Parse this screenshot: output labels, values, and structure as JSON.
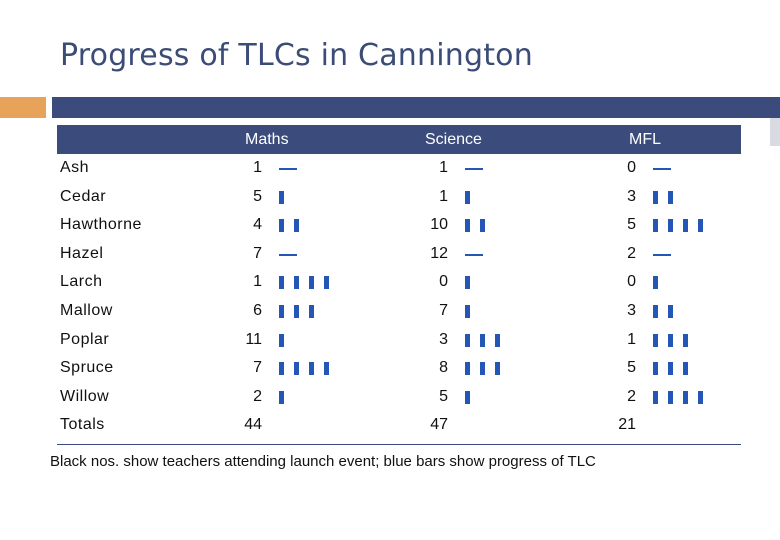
{
  "title": "Progress of TLCs in Cannington",
  "columns": [
    "Maths",
    "Science",
    "MFL"
  ],
  "rows": [
    {
      "name": "Ash",
      "maths": {
        "count": "1",
        "progress": 0
      },
      "science": {
        "count": "1",
        "progress": 0
      },
      "mfl": {
        "count": "0",
        "progress": 0
      }
    },
    {
      "name": "Cedar",
      "maths": {
        "count": "5",
        "progress": 1
      },
      "science": {
        "count": "1",
        "progress": 1
      },
      "mfl": {
        "count": "3",
        "progress": 2
      }
    },
    {
      "name": "Hawthorne",
      "maths": {
        "count": "4",
        "progress": 2
      },
      "science": {
        "count": "10",
        "progress": 2
      },
      "mfl": {
        "count": "5",
        "progress": 4
      }
    },
    {
      "name": "Hazel",
      "maths": {
        "count": "7",
        "progress": 0
      },
      "science": {
        "count": "12",
        "progress": 0
      },
      "mfl": {
        "count": "2",
        "progress": 0
      }
    },
    {
      "name": "Larch",
      "maths": {
        "count": "1",
        "progress": 4
      },
      "science": {
        "count": "0",
        "progress": 1
      },
      "mfl": {
        "count": "0",
        "progress": 1
      }
    },
    {
      "name": "Mallow",
      "maths": {
        "count": "6",
        "progress": 3
      },
      "science": {
        "count": "7",
        "progress": 1
      },
      "mfl": {
        "count": "3",
        "progress": 2
      }
    },
    {
      "name": "Poplar",
      "maths": {
        "count": "11",
        "progress": 1
      },
      "science": {
        "count": "3",
        "progress": 3
      },
      "mfl": {
        "count": "1",
        "progress": 3
      }
    },
    {
      "name": "Spruce",
      "maths": {
        "count": "7",
        "progress": 4
      },
      "science": {
        "count": "8",
        "progress": 3
      },
      "mfl": {
        "count": "5",
        "progress": 3
      }
    },
    {
      "name": "Willow",
      "maths": {
        "count": "2",
        "progress": 1
      },
      "science": {
        "count": "5",
        "progress": 1
      },
      "mfl": {
        "count": "2",
        "progress": 4
      }
    }
  ],
  "totals": {
    "label": "Totals",
    "maths": "44",
    "science": "47",
    "mfl": "21"
  },
  "footnote": "Black nos. show teachers attending launch event; blue bars show progress of TLC",
  "colors": {
    "accent_navy": "#3b4c7c",
    "accent_orange": "#e8a35a",
    "bar_blue": "#2456b8",
    "title": "#3b4d77"
  }
}
